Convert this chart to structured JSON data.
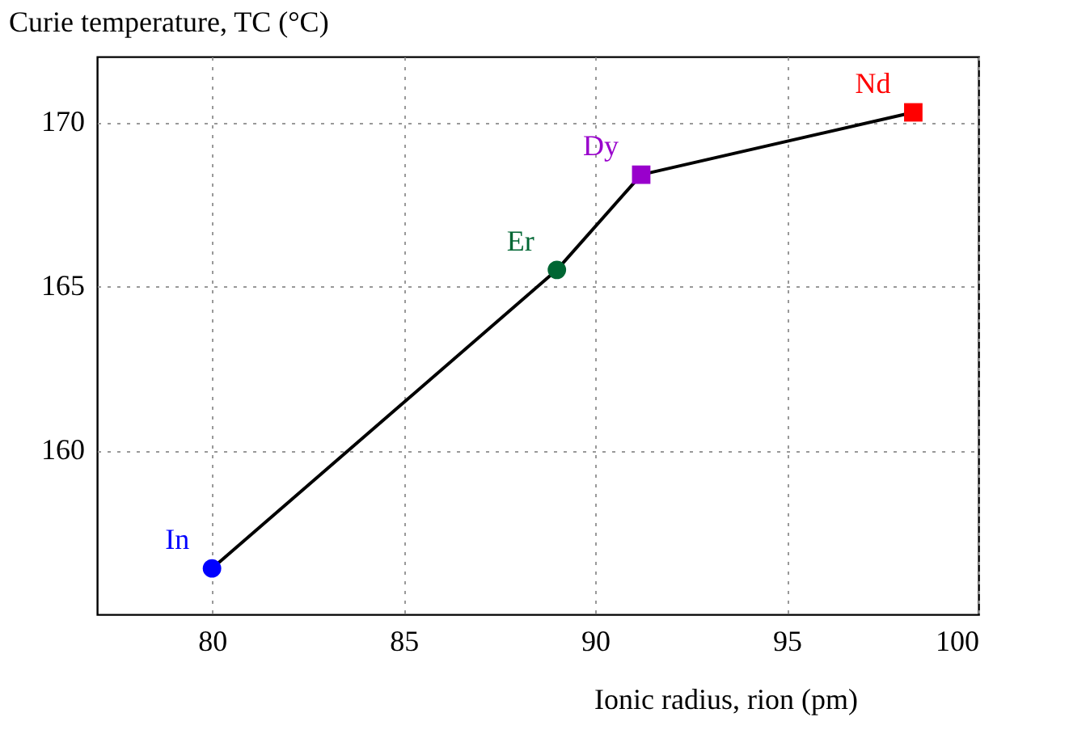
{
  "chart_data": {
    "type": "line",
    "xlabel": "Ionic radius, rion (pm)",
    "ylabel": "Curie temperature, TC (°C)",
    "xlim": [
      77,
      100
    ],
    "xticks": [
      80,
      85,
      90,
      95,
      100
    ],
    "ylim": [
      155,
      172
    ],
    "yticks": [
      160,
      165,
      170
    ],
    "grid": true,
    "series": [
      {
        "color": "#000000",
        "marker": "none",
        "line_style": "solid",
        "x": [
          80,
          89.0,
          91.2,
          98.3
        ],
        "values": [
          156.4,
          165.5,
          168.4,
          170.3
        ]
      },
      {
        "type": "scatter",
        "name": "In",
        "color": "#0000ff",
        "marker": "circle",
        "x": [
          80
        ],
        "values": [
          156.4
        ]
      },
      {
        "type": "scatter",
        "name": "Er",
        "color": "#006633",
        "marker": "circle",
        "x": [
          89.0
        ],
        "values": [
          165.5
        ]
      },
      {
        "type": "scatter",
        "name": "Dy",
        "color": "#9900cc",
        "marker": "square",
        "x": [
          91.2
        ],
        "values": [
          168.4
        ]
      },
      {
        "type": "scatter",
        "name": "Nd",
        "color": "#ff0000",
        "marker": "square",
        "x": [
          98.3
        ],
        "values": [
          170.3
        ]
      }
    ]
  }
}
